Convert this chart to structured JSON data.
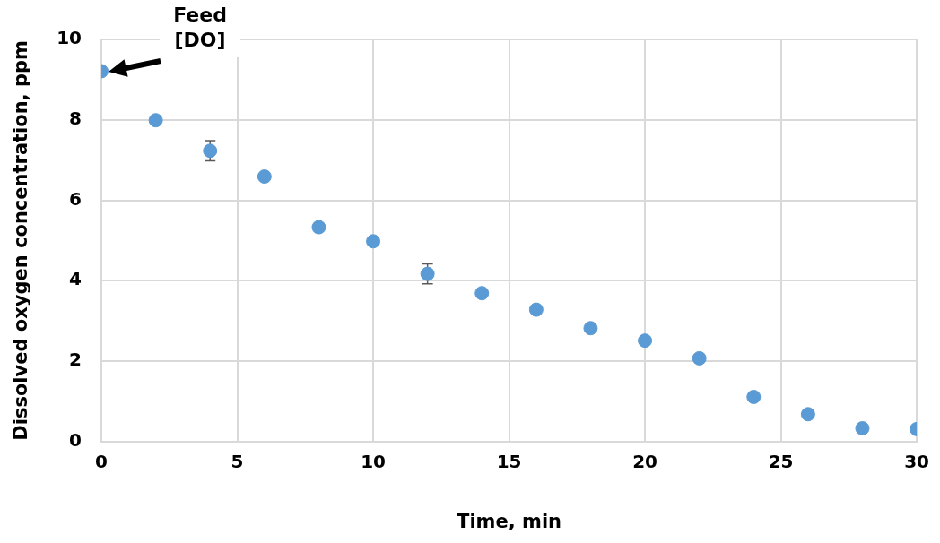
{
  "chart_data": {
    "type": "scatter",
    "xlabel": "Time, min",
    "ylabel": "Dissolved oxygen concentration, ppm",
    "x": [
      0,
      2,
      4,
      6,
      8,
      10,
      12,
      14,
      16,
      18,
      20,
      22,
      24,
      26,
      28,
      30
    ],
    "series": [
      {
        "color": "#5b9bd5",
        "values": [
          9.21,
          7.99,
          7.23,
          6.59,
          5.33,
          4.98,
          4.17,
          3.69,
          3.28,
          2.82,
          2.51,
          2.07,
          1.11,
          0.68,
          0.33,
          0.31
        ],
        "errors": [
          null,
          null,
          0.25,
          null,
          null,
          null,
          0.25,
          null,
          null,
          null,
          null,
          null,
          null,
          null,
          null,
          null
        ]
      }
    ],
    "xlim": [
      0,
      30
    ],
    "xticks": [
      0,
      5,
      10,
      15,
      20,
      25,
      30
    ],
    "ylim": [
      0,
      10
    ],
    "yticks": [
      0,
      2,
      4,
      6,
      8,
      10
    ],
    "grid": true,
    "legend": false,
    "marker": "circle",
    "annotations": [
      "Feed\n[DO]"
    ]
  }
}
